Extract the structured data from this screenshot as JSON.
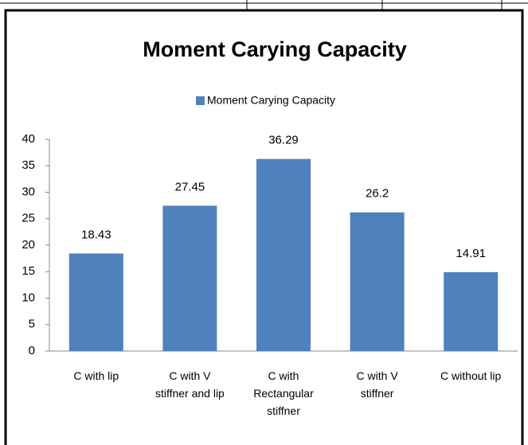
{
  "chart_data": {
    "type": "bar",
    "title": "Moment Carying Capacity",
    "categories": [
      "C with lip",
      "C with V\nstiffner and lip",
      "C with\nRectangular\nstiffner",
      "C with V\nstiffner",
      "C without lip"
    ],
    "series": [
      {
        "name": "Moment Carying Capacity",
        "color": "#4f81bd",
        "values": [
          18.43,
          27.45,
          36.29,
          26.2,
          14.91
        ]
      }
    ],
    "ylim": [
      0,
      40
    ],
    "yticks": [
      0,
      5,
      10,
      15,
      20,
      25,
      30,
      35,
      40
    ],
    "legend": "top",
    "grid": false
  }
}
